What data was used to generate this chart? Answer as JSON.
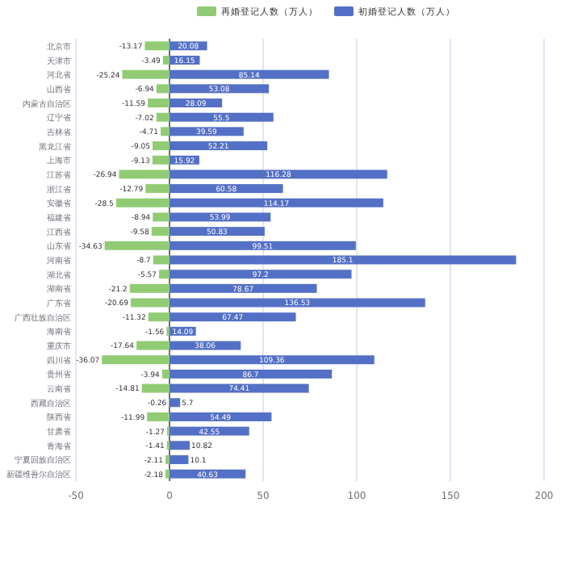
{
  "chart_data": {
    "type": "bar",
    "orientation": "horizontal",
    "stacked": true,
    "data_labels": true,
    "grid": "x",
    "legend": "top",
    "categories": [
      "北京市",
      "天津市",
      "河北省",
      "山西省",
      "内蒙古自治区",
      "辽宁省",
      "吉林省",
      "黑龙江省",
      "上海市",
      "江苏省",
      "浙江省",
      "安徽省",
      "福建省",
      "江西省",
      "山东省",
      "河南省",
      "湖北省",
      "湖南省",
      "广东省",
      "广西壮族自治区",
      "海南省",
      "重庆市",
      "四川省",
      "贵州省",
      "云南省",
      "西藏自治区",
      "陕西省",
      "甘肃省",
      "青海省",
      "宁夏回族自治区",
      "新疆维吾尔自治区"
    ],
    "xlim": [
      -50,
      200
    ],
    "xticks": [
      -50,
      0,
      50,
      100,
      150,
      200
    ],
    "series": [
      {
        "name": "再婚登记人数（万人）",
        "color": "#91cc75",
        "values": [
          -13.17,
          -3.49,
          -25.24,
          -6.94,
          -11.59,
          -7.02,
          -4.71,
          -9.05,
          -9.13,
          -26.94,
          -12.79,
          -28.5,
          -8.94,
          -9.58,
          -34.63,
          -8.7,
          -5.57,
          -21.2,
          -20.69,
          -11.32,
          -1.56,
          -17.64,
          -36.07,
          -3.94,
          -14.81,
          -0.26,
          -11.99,
          -1.27,
          -1.41,
          -2.11,
          -2.18
        ]
      },
      {
        "name": "初婚登记人数（万人）",
        "color": "#5470c6",
        "values": [
          20.08,
          16.15,
          85.14,
          53.08,
          28.09,
          55.5,
          39.59,
          52.21,
          15.92,
          116.28,
          60.58,
          114.17,
          53.99,
          50.83,
          99.51,
          185.1,
          97.2,
          78.67,
          136.53,
          67.47,
          14.09,
          38.06,
          109.36,
          86.7,
          74.41,
          5.7,
          54.49,
          42.55,
          10.82,
          10.1,
          40.63
        ]
      }
    ]
  }
}
